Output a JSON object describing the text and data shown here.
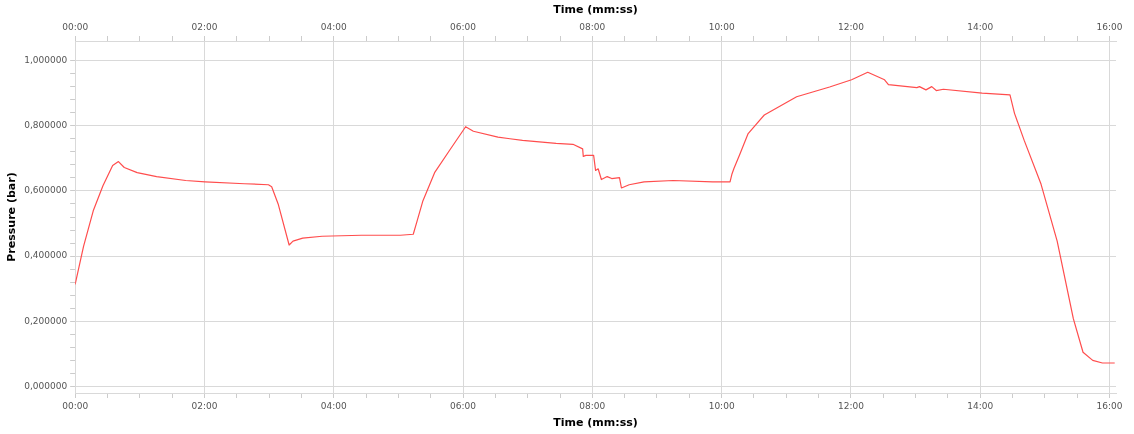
{
  "chart_data": {
    "type": "line",
    "xlabel": "Time (mm:ss)",
    "x2label": "Time (mm:ss)",
    "ylabel": "Pressure (bar)",
    "x": [
      0,
      0.13,
      0.28,
      0.43,
      0.58,
      0.67,
      0.76,
      0.96,
      1.26,
      1.71,
      2.01,
      2.62,
      2.99,
      3.04,
      3.14,
      3.31,
      3.37,
      3.52,
      3.82,
      4.43,
      5.03,
      5.23,
      5.29,
      5.38,
      5.56,
      5.79,
      6.04,
      6.16,
      6.54,
      6.92,
      7.44,
      7.7,
      7.85,
      7.86,
      7.9,
      8.02,
      8.05,
      8.09,
      8.14,
      8.23,
      8.3,
      8.42,
      8.45,
      8.57,
      8.8,
      9.25,
      9.86,
      10.13,
      10.16,
      10.19,
      10.28,
      10.41,
      10.66,
      11.16,
      11.67,
      12.01,
      12.26,
      12.52,
      12.58,
      13.02,
      13.06,
      13.16,
      13.25,
      13.32,
      13.43,
      14.03,
      14.46,
      14.53,
      14.68,
      14.94,
      15.19,
      15.44,
      15.59,
      15.74,
      15.89,
      16.08
    ],
    "series": [
      {
        "color": "#ff4d4d",
        "values": [
          0.313,
          0.43,
          0.539,
          0.616,
          0.678,
          0.69,
          0.672,
          0.656,
          0.644,
          0.632,
          0.628,
          0.622,
          0.619,
          0.613,
          0.56,
          0.434,
          0.446,
          0.455,
          0.461,
          0.464,
          0.464,
          0.467,
          0.508,
          0.57,
          0.656,
          0.724,
          0.797,
          0.783,
          0.765,
          0.755,
          0.746,
          0.743,
          0.729,
          0.706,
          0.709,
          0.709,
          0.663,
          0.668,
          0.635,
          0.644,
          0.638,
          0.641,
          0.609,
          0.619,
          0.628,
          0.632,
          0.628,
          0.628,
          0.652,
          0.669,
          0.712,
          0.776,
          0.833,
          0.889,
          0.919,
          0.941,
          0.964,
          0.941,
          0.926,
          0.917,
          0.92,
          0.91,
          0.92,
          0.908,
          0.912,
          0.9,
          0.895,
          0.838,
          0.755,
          0.621,
          0.446,
          0.208,
          0.105,
          0.08,
          0.072,
          0.072
        ]
      }
    ],
    "xlim": [
      0,
      16.1
    ],
    "x2lim": [
      0,
      16.1
    ],
    "xticks": [
      {
        "value": 0,
        "label": "00:00"
      },
      {
        "value": 0.5,
        "label": null
      },
      {
        "value": 1,
        "label": null
      },
      {
        "value": 1.5,
        "label": null
      },
      {
        "value": 2,
        "label": "02:00"
      },
      {
        "value": 2.5,
        "label": null
      },
      {
        "value": 3,
        "label": null
      },
      {
        "value": 3.5,
        "label": null
      },
      {
        "value": 4,
        "label": "04:00"
      },
      {
        "value": 4.5,
        "label": null
      },
      {
        "value": 5,
        "label": null
      },
      {
        "value": 5.5,
        "label": null
      },
      {
        "value": 6,
        "label": "06:00"
      },
      {
        "value": 6.5,
        "label": null
      },
      {
        "value": 7,
        "label": null
      },
      {
        "value": 7.5,
        "label": null
      },
      {
        "value": 8,
        "label": "08:00"
      },
      {
        "value": 8.5,
        "label": null
      },
      {
        "value": 9,
        "label": null
      },
      {
        "value": 9.5,
        "label": null
      },
      {
        "value": 10,
        "label": "10:00"
      },
      {
        "value": 10.5,
        "label": null
      },
      {
        "value": 11,
        "label": null
      },
      {
        "value": 11.5,
        "label": null
      },
      {
        "value": 12,
        "label": "12:00"
      },
      {
        "value": 12.5,
        "label": null
      },
      {
        "value": 13,
        "label": null
      },
      {
        "value": 13.5,
        "label": null
      },
      {
        "value": 14,
        "label": "14:00"
      },
      {
        "value": 14.5,
        "label": null
      },
      {
        "value": 15,
        "label": null
      },
      {
        "value": 15.5,
        "label": null
      },
      {
        "value": 16,
        "label": "16:00"
      }
    ],
    "x2ticks": [
      {
        "value": 0,
        "label": "00:00"
      },
      {
        "value": 0.5,
        "label": null
      },
      {
        "value": 1,
        "label": null
      },
      {
        "value": 1.5,
        "label": null
      },
      {
        "value": 2,
        "label": "02:00"
      },
      {
        "value": 2.5,
        "label": null
      },
      {
        "value": 3,
        "label": null
      },
      {
        "value": 3.5,
        "label": null
      },
      {
        "value": 4,
        "label": "04:00"
      },
      {
        "value": 4.5,
        "label": null
      },
      {
        "value": 5,
        "label": null
      },
      {
        "value": 5.5,
        "label": null
      },
      {
        "value": 6,
        "label": "06:00"
      },
      {
        "value": 6.5,
        "label": null
      },
      {
        "value": 7,
        "label": null
      },
      {
        "value": 7.5,
        "label": null
      },
      {
        "value": 8,
        "label": "08:00"
      },
      {
        "value": 8.5,
        "label": null
      },
      {
        "value": 9,
        "label": null
      },
      {
        "value": 9.5,
        "label": null
      },
      {
        "value": 10,
        "label": "10:00"
      },
      {
        "value": 10.5,
        "label": null
      },
      {
        "value": 11,
        "label": null
      },
      {
        "value": 11.5,
        "label": null
      },
      {
        "value": 12,
        "label": "12:00"
      },
      {
        "value": 12.5,
        "label": null
      },
      {
        "value": 13,
        "label": null
      },
      {
        "value": 13.5,
        "label": null
      },
      {
        "value": 14,
        "label": "14:00"
      },
      {
        "value": 14.5,
        "label": null
      },
      {
        "value": 15,
        "label": null
      },
      {
        "value": 15.5,
        "label": null
      },
      {
        "value": 16,
        "label": "16:00"
      }
    ],
    "ylim": [
      -0.02,
      1.06
    ],
    "yticks": [
      {
        "value": 0,
        "label": "0,000000"
      },
      {
        "value": 0.04,
        "label": null
      },
      {
        "value": 0.08,
        "label": null
      },
      {
        "value": 0.12,
        "label": null
      },
      {
        "value": 0.16,
        "label": null
      },
      {
        "value": 0.2,
        "label": "0,200000"
      },
      {
        "value": 0.24,
        "label": null
      },
      {
        "value": 0.28,
        "label": null
      },
      {
        "value": 0.32,
        "label": null
      },
      {
        "value": 0.36,
        "label": null
      },
      {
        "value": 0.4,
        "label": "0,400000"
      },
      {
        "value": 0.44,
        "label": null
      },
      {
        "value": 0.48,
        "label": null
      },
      {
        "value": 0.52,
        "label": null
      },
      {
        "value": 0.56,
        "label": null
      },
      {
        "value": 0.6,
        "label": "0,600000"
      },
      {
        "value": 0.64,
        "label": null
      },
      {
        "value": 0.68,
        "label": null
      },
      {
        "value": 0.72,
        "label": null
      },
      {
        "value": 0.76,
        "label": null
      },
      {
        "value": 0.8,
        "label": "0,800000"
      },
      {
        "value": 0.84,
        "label": null
      },
      {
        "value": 0.88,
        "label": null
      },
      {
        "value": 0.92,
        "label": null
      },
      {
        "value": 0.96,
        "label": null
      },
      {
        "value": 1,
        "label": "1,000000"
      }
    ],
    "grid": true,
    "legend": false,
    "marker": "none",
    "line_style": "solid"
  }
}
